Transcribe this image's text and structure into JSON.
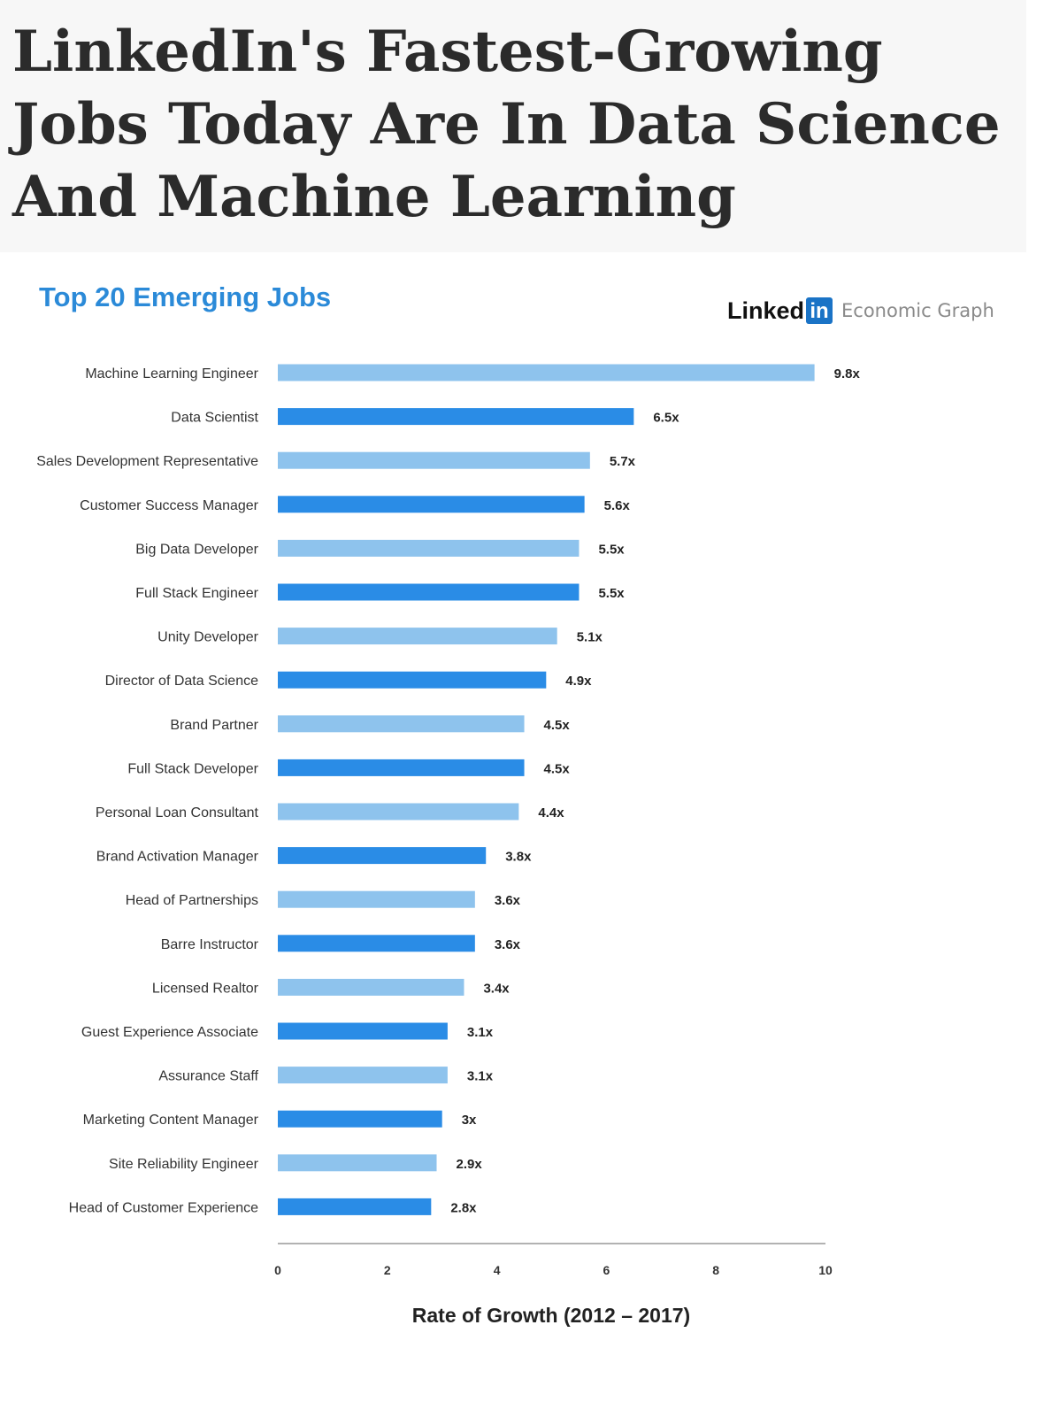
{
  "headline": "LinkedIn's Fastest-Growing Jobs Today Are In Data Science And Machine Learning",
  "brand": {
    "linked": "Linked",
    "in": "in",
    "subtitle": "Economic Graph",
    "in_color": "#1a73c6"
  },
  "colors": {
    "bar_light": "#8ec3ed",
    "bar_dark": "#2a8ce6",
    "title_blue": "#2b8ad8"
  },
  "chart_data": {
    "type": "bar",
    "orientation": "horizontal",
    "title": "Top 20 Emerging Jobs",
    "xlabel": "Rate of Growth (2012 – 2017)",
    "ylabel": "",
    "xlim": [
      0,
      10
    ],
    "xticks": [
      0,
      2,
      4,
      6,
      8,
      10
    ],
    "grid": false,
    "legend": "none",
    "categories": [
      "Machine Learning Engineer",
      "Data Scientist",
      "Sales Development Representative",
      "Customer Success Manager",
      "Big Data Developer",
      "Full Stack Engineer",
      "Unity Developer",
      "Director of Data Science",
      "Brand Partner",
      "Full Stack Developer",
      "Personal Loan Consultant",
      "Brand Activation Manager",
      "Head of Partnerships",
      "Barre Instructor",
      "Licensed Realtor",
      "Guest Experience Associate",
      "Assurance Staff",
      "Marketing Content Manager",
      "Site Reliability Engineer",
      "Head of Customer Experience"
    ],
    "values": [
      9.8,
      6.5,
      5.7,
      5.6,
      5.5,
      5.5,
      5.1,
      4.9,
      4.5,
      4.5,
      4.4,
      3.8,
      3.6,
      3.6,
      3.4,
      3.1,
      3.1,
      3,
      2.9,
      2.8
    ],
    "value_labels": [
      "9.8x",
      "6.5x",
      "5.7x",
      "5.6x",
      "5.5x",
      "5.5x",
      "5.1x",
      "4.9x",
      "4.5x",
      "4.5x",
      "4.4x",
      "3.8x",
      "3.6x",
      "3.6x",
      "3.4x",
      "3.1x",
      "3.1x",
      "3x",
      "2.9x",
      "2.8x"
    ]
  }
}
